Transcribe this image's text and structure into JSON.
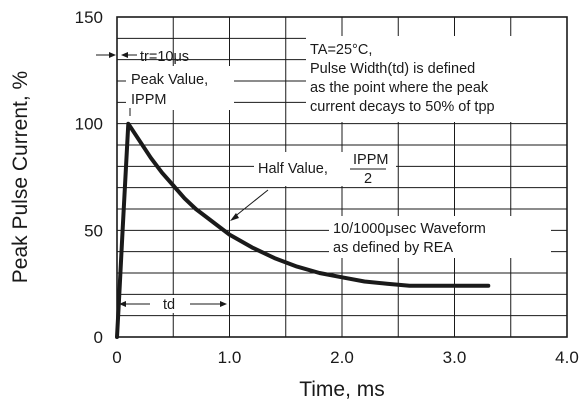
{
  "chart_data": {
    "type": "line",
    "title": "",
    "xlabel": "Time, ms",
    "ylabel": "Peak Pulse Current, %",
    "xlim": [
      0,
      4.0
    ],
    "ylim": [
      0,
      150
    ],
    "x_ticks": [
      "0",
      "1.0",
      "2.0",
      "3.0",
      "4.0"
    ],
    "y_ticks": [
      "0",
      "50",
      "100",
      "150"
    ],
    "grid": true,
    "series": [
      {
        "x": [
          0.0,
          0.02,
          0.05,
          0.1,
          0.15,
          0.2,
          0.3,
          0.4,
          0.5,
          0.6,
          0.7,
          0.8,
          0.9,
          1.0,
          1.2,
          1.4,
          1.6,
          1.8,
          2.0,
          2.2,
          2.4,
          2.6,
          2.8,
          3.0,
          3.3
        ],
        "values": [
          0,
          20,
          50,
          100,
          96,
          92,
          84,
          77,
          71,
          65,
          60,
          56,
          52,
          48,
          42,
          37,
          33,
          30,
          28,
          26,
          25,
          24,
          24,
          24,
          24
        ]
      }
    ],
    "annotations": {
      "tr": "tr=10μs",
      "peak_line1": "Peak Value,",
      "peak_line2": "IPPM",
      "conditions": [
        "TA=25°C,",
        "Pulse Width(td) is defined",
        "as the point where the peak",
        "current decays to 50% of tpp"
      ],
      "half_label": "Half Value,",
      "half_num": "IPPM",
      "half_den": "2",
      "waveform": [
        "10/1000μsec Waveform",
        "as defined by REA"
      ],
      "td": "td"
    }
  }
}
